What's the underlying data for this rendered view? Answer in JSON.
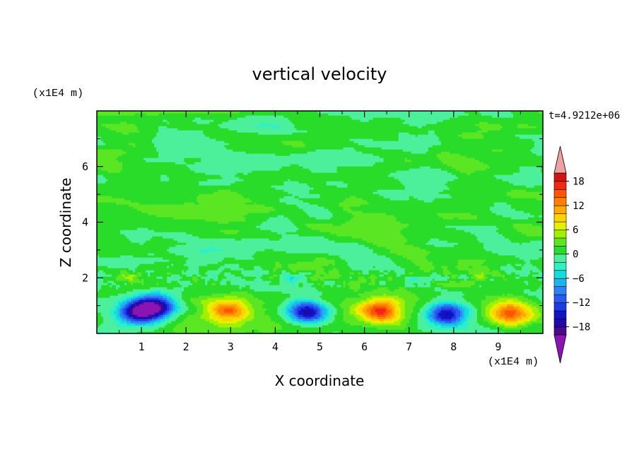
{
  "chart_data": {
    "type": "heatmap",
    "title": "vertical velocity",
    "xlabel": "X coordinate",
    "ylabel": "Z coordinate",
    "x_unit": "(x1E4 m)",
    "y_unit": "(x1E4 m)",
    "time_label": "t=4.9212e+06",
    "xlim": [
      0,
      10
    ],
    "ylim": [
      0,
      8
    ],
    "x_ticks": [
      "1",
      "2",
      "3",
      "4",
      "5",
      "6",
      "7",
      "8",
      "9"
    ],
    "y_ticks": [
      "2",
      "4",
      "6"
    ],
    "colorbar": {
      "levels": [
        -20,
        -18,
        -16,
        -14,
        -12,
        -10,
        -8,
        -6,
        -4,
        -2,
        0,
        2,
        4,
        6,
        8,
        10,
        12,
        14,
        16,
        18,
        20
      ],
      "colors": [
        "#4b0a8c",
        "#1d0aa8",
        "#1212c8",
        "#1e3ce6",
        "#2a5af0",
        "#2d82f5",
        "#1eb4f0",
        "#14dcdc",
        "#2ef0c8",
        "#4cf09a",
        "#2adc2a",
        "#5ae622",
        "#a0f000",
        "#e6f000",
        "#ffd200",
        "#ffaa00",
        "#ff8000",
        "#ff5500",
        "#f02814",
        "#d21414"
      ],
      "under_color": "#8c14b4",
      "over_color": "#f0a0a0",
      "tick_labels": [
        "18",
        "12",
        "6",
        "0",
        "−6",
        "−12",
        "−18"
      ]
    },
    "cells": [
      {
        "center_x": 0.95,
        "center_z": 0.8,
        "min": -19,
        "sign": "negative"
      },
      {
        "center_x": 1.35,
        "center_z": 1.0,
        "min": -17,
        "sign": "negative"
      },
      {
        "center_x": 2.95,
        "center_z": 0.85,
        "max": 13,
        "sign": "positive"
      },
      {
        "center_x": 4.7,
        "center_z": 0.8,
        "min": -18,
        "sign": "negative"
      },
      {
        "center_x": 6.35,
        "center_z": 0.85,
        "max": 14,
        "sign": "positive"
      },
      {
        "center_x": 7.85,
        "center_z": 0.7,
        "min": -19,
        "sign": "negative"
      },
      {
        "center_x": 9.25,
        "center_z": 0.75,
        "max": 12,
        "sign": "positive"
      }
    ]
  }
}
